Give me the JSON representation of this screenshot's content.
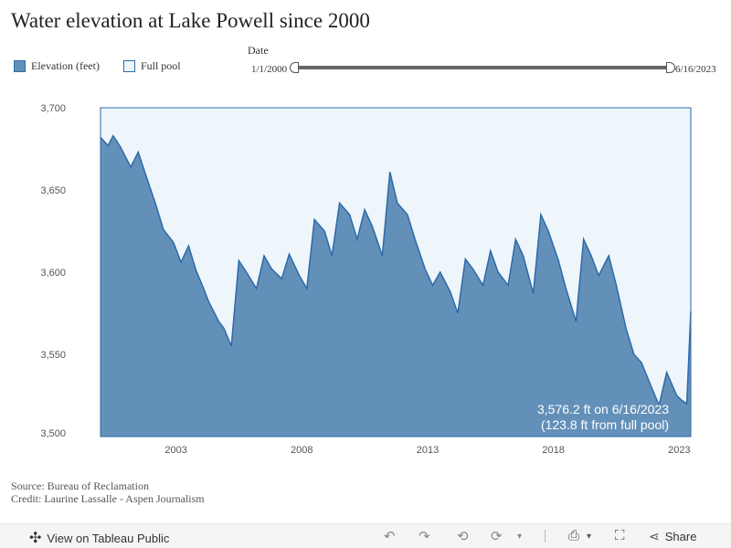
{
  "title": "Water elevation at Lake Powell since 2000",
  "legend": {
    "elevation_label": "Elevation (feet)",
    "fullpool_label": "Full pool"
  },
  "slider": {
    "label": "Date",
    "start": "1/1/2000",
    "end": "6/16/2023"
  },
  "annotation": {
    "line1": "3,576.2 ft on 6/16/2023",
    "line2": "(123.8 ft from full pool)"
  },
  "source": {
    "line1": "Source: Bureau of Reclamation",
    "line2": "Credit: Laurine Lassalle - Aspen Journalism"
  },
  "toolbar": {
    "view_label": "View on Tableau Public",
    "share_label": "Share"
  },
  "colors": {
    "elevation_fill": "#6390b9",
    "elevation_stroke": "#2e6aa8",
    "fullpool_fill": "#eef6fb"
  },
  "chart_data": {
    "type": "area",
    "title": "Water elevation at Lake Powell since 2000",
    "xlabel": "",
    "ylabel": "",
    "xlim": [
      2000.0,
      2023.46
    ],
    "ylim": [
      3500,
      3700
    ],
    "x_ticks": [
      2003,
      2008,
      2013,
      2018,
      2023
    ],
    "x_tick_labels": [
      "2003",
      "2008",
      "2013",
      "2018",
      "2023"
    ],
    "y_ticks": [
      3500,
      3550,
      3600,
      3650,
      3700
    ],
    "y_tick_labels": [
      "3,500",
      "3,550",
      "3,600",
      "3,650",
      "3,700"
    ],
    "full_pool": 3700,
    "series": [
      {
        "name": "Elevation (feet)",
        "x": [
          2000.0,
          2000.3,
          2000.5,
          2000.8,
          2001.2,
          2001.5,
          2001.8,
          2002.2,
          2002.5,
          2002.9,
          2003.2,
          2003.5,
          2003.8,
          2004.1,
          2004.3,
          2004.7,
          2004.9,
          2005.2,
          2005.5,
          2005.8,
          2006.2,
          2006.5,
          2006.8,
          2007.2,
          2007.5,
          2007.9,
          2008.2,
          2008.5,
          2008.9,
          2009.2,
          2009.5,
          2009.9,
          2010.2,
          2010.5,
          2010.8,
          2011.2,
          2011.5,
          2011.8,
          2012.2,
          2012.5,
          2012.9,
          2013.2,
          2013.5,
          2013.9,
          2014.2,
          2014.5,
          2014.8,
          2015.2,
          2015.5,
          2015.8,
          2016.2,
          2016.5,
          2016.8,
          2017.2,
          2017.5,
          2017.8,
          2018.2,
          2018.5,
          2018.9,
          2019.2,
          2019.5,
          2019.8,
          2020.2,
          2020.5,
          2020.9,
          2021.2,
          2021.5,
          2021.9,
          2022.2,
          2022.5,
          2022.9,
          2023.1,
          2023.3,
          2023.46
        ],
        "values": [
          3682,
          3677,
          3683,
          3676,
          3664,
          3673,
          3659,
          3641,
          3626,
          3618,
          3606,
          3616,
          3601,
          3590,
          3582,
          3570,
          3566,
          3555,
          3607,
          3600,
          3590,
          3610,
          3602,
          3596,
          3611,
          3598,
          3590,
          3632,
          3625,
          3610,
          3642,
          3635,
          3620,
          3638,
          3628,
          3610,
          3661,
          3642,
          3635,
          3620,
          3602,
          3592,
          3600,
          3588,
          3575,
          3608,
          3602,
          3592,
          3613,
          3600,
          3592,
          3620,
          3610,
          3587,
          3635,
          3625,
          3607,
          3590,
          3570,
          3620,
          3610,
          3598,
          3610,
          3592,
          3565,
          3550,
          3545,
          3530,
          3519,
          3539,
          3525,
          3522,
          3520,
          3576.2
        ]
      }
    ],
    "annotations": [
      "3,576.2 ft on 6/16/2023",
      "(123.8 ft from full pool)"
    ]
  }
}
